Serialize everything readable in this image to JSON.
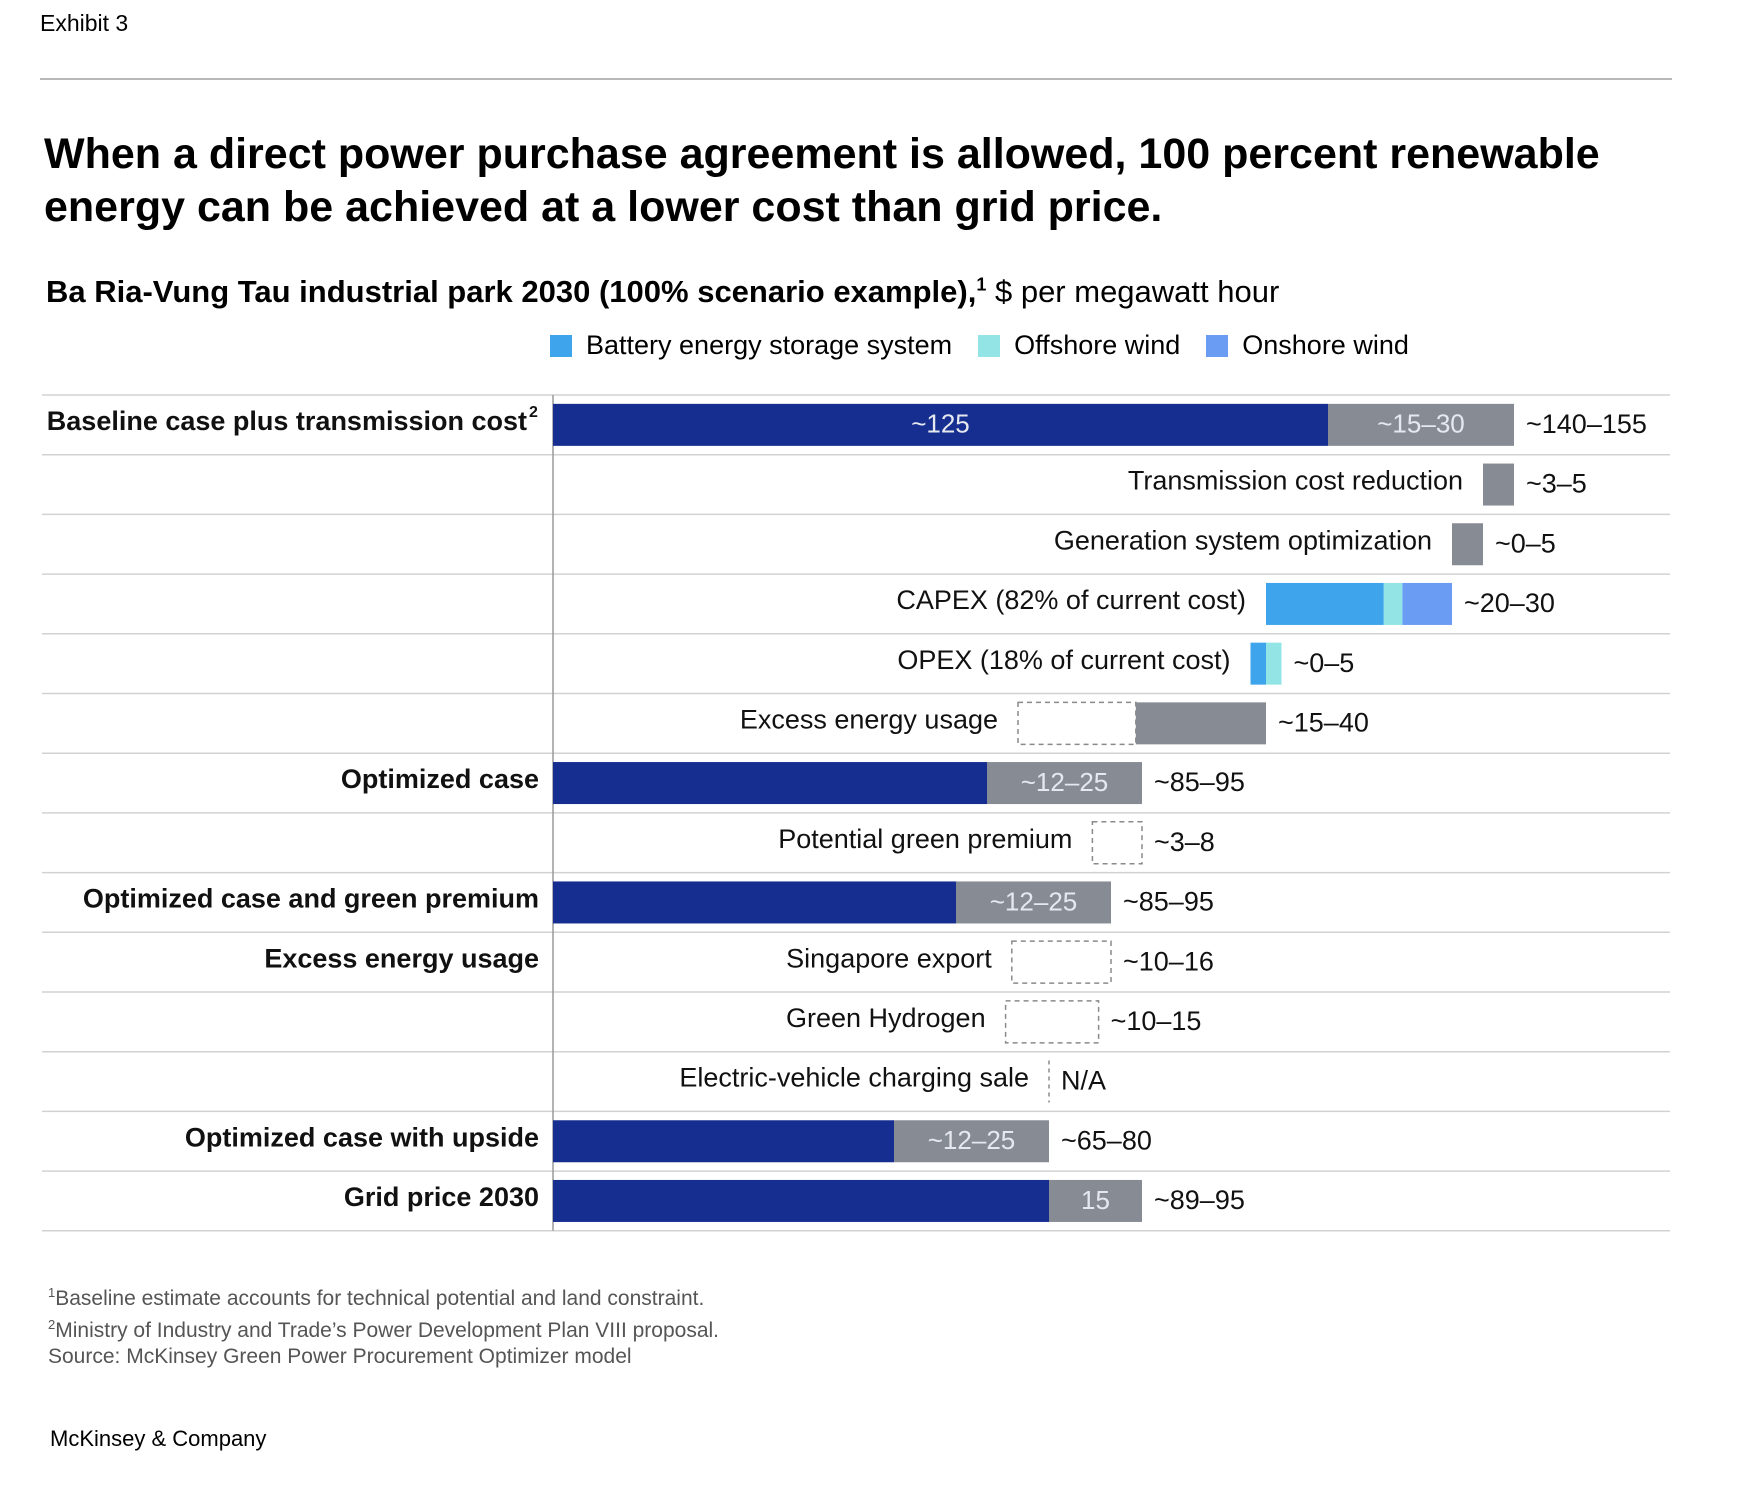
{
  "exhibit": "Exhibit 3",
  "title": "When a direct power purchase agreement is allowed, 100 percent renewable energy can be achieved at a lower cost than grid price.",
  "subtitle": {
    "bold": "Ba Ria-Vung Tau industrial park 2030 (100% scenario example),",
    "sup": "1",
    "rest": " $ per megawatt hour"
  },
  "colors": {
    "baseline": "#152e8f",
    "gray": "#878c94",
    "battery": "#3ea5ec",
    "offshore": "#93e5e5",
    "onshore": "#6b9cf3"
  },
  "legend": [
    {
      "label": "Battery energy storage system",
      "color": "#3ea5ec"
    },
    {
      "label": "Offshore wind",
      "color": "#93e5e5"
    },
    {
      "label": "Onshore wind",
      "color": "#6b9cf3"
    }
  ],
  "chart_data": {
    "type": "bar",
    "subtype": "waterfall-horizontal",
    "unit": "$ per megawatt hour",
    "xlim": [
      0,
      155
    ],
    "rows": [
      {
        "label": "Baseline case plus transmission cost",
        "sup": "2",
        "bold": true,
        "segments": [
          {
            "start": 0,
            "end": 125,
            "color": "baseline",
            "label": "~125"
          },
          {
            "start": 125,
            "end": 155,
            "color": "gray",
            "label": "~15–30"
          }
        ],
        "value": "~140–155"
      },
      {
        "label": "Transmission cost reduction",
        "bold": false,
        "segments": [
          {
            "start": 150,
            "end": 155,
            "color": "gray"
          }
        ],
        "value": "~3–5"
      },
      {
        "label": "Generation system optimization",
        "bold": false,
        "segments": [
          {
            "start": 145,
            "end": 150,
            "color": "gray"
          }
        ],
        "value": "~0–5"
      },
      {
        "label": "CAPEX (82% of current cost)",
        "bold": false,
        "segments": [
          {
            "start": 115,
            "end": 134,
            "color": "battery"
          },
          {
            "start": 134,
            "end": 137,
            "color": "offshore"
          },
          {
            "start": 137,
            "end": 145,
            "color": "onshore"
          }
        ],
        "value": "~20–30"
      },
      {
        "label": "OPEX (18% of current cost)",
        "bold": false,
        "segments": [
          {
            "start": 112.5,
            "end": 115,
            "color": "battery"
          },
          {
            "start": 115,
            "end": 117.5,
            "color": "offshore"
          }
        ],
        "value": "~0–5"
      },
      {
        "label": "Excess energy usage",
        "bold": false,
        "segments": [
          {
            "start": 75,
            "end": 94,
            "color": "dashed"
          },
          {
            "start": 94,
            "end": 115,
            "color": "gray"
          }
        ],
        "value": "~15–40"
      },
      {
        "label": "Optimized case",
        "bold": true,
        "segments": [
          {
            "start": 0,
            "end": 70,
            "color": "baseline"
          },
          {
            "start": 70,
            "end": 95,
            "color": "gray",
            "label": "~12–25"
          }
        ],
        "value": "~85–95"
      },
      {
        "label": "Potential green premium",
        "bold": false,
        "segments": [
          {
            "start": 87,
            "end": 95,
            "color": "dashed"
          }
        ],
        "value": "~3–8"
      },
      {
        "label": "Optimized case and green premium",
        "bold": true,
        "segments": [
          {
            "start": 0,
            "end": 65,
            "color": "baseline"
          },
          {
            "start": 65,
            "end": 90,
            "color": "gray",
            "label": "~12–25"
          }
        ],
        "value": "~85–95"
      },
      {
        "label": "Singapore export",
        "group": "Excess energy usage",
        "bold": false,
        "segments": [
          {
            "start": 74,
            "end": 90,
            "color": "dashed"
          }
        ],
        "value": "~10–16"
      },
      {
        "label": "Green Hydrogen",
        "bold": false,
        "segments": [
          {
            "start": 73,
            "end": 88,
            "color": "dashed"
          }
        ],
        "value": "~10–15"
      },
      {
        "label": "Electric-vehicle charging sale",
        "bold": false,
        "segments": [
          {
            "start": 80,
            "end": 80,
            "color": "dashed"
          }
        ],
        "value": "N/A"
      },
      {
        "label": "Optimized case with upside",
        "bold": true,
        "segments": [
          {
            "start": 0,
            "end": 55,
            "color": "baseline"
          },
          {
            "start": 55,
            "end": 80,
            "color": "gray",
            "label": "~12–25"
          }
        ],
        "value": "~65–80"
      },
      {
        "label": "Grid price 2030",
        "bold": true,
        "segments": [
          {
            "start": 0,
            "end": 80,
            "color": "baseline"
          },
          {
            "start": 80,
            "end": 95,
            "color": "gray",
            "label": "15"
          }
        ],
        "value": "~89–95"
      }
    ]
  },
  "footnotes": [
    {
      "sup": "1",
      "text": "Baseline estimate accounts for technical potential and land constraint."
    },
    {
      "sup": "2",
      "text": "Ministry of Industry and Trade’s Power Development Plan VIII proposal."
    },
    {
      "sup": "",
      "text": " Source: McKinsey Green Power Procurement Optimizer model"
    }
  ],
  "brand": "McKinsey & Company"
}
